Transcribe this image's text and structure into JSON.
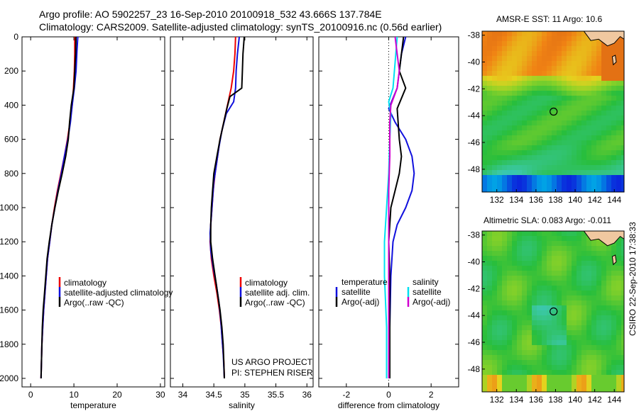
{
  "header": {
    "line1": "Argo profile: AO 5902257_23 16-Sep-2010 20100918_532 43.666S 137.784E",
    "line2": "Climatology: CARS2009. Satellite-adjusted climatology: synTS_20100916.nc (0.56d earlier)"
  },
  "credit": {
    "line1": "US ARGO PROJECT",
    "line2": "PI: STEPHEN RISER"
  },
  "stamp": "CSIRO 22-Sep-2010 17:38:33",
  "colors": {
    "climatology": "#ee0000",
    "satellite": "#1010dd",
    "argo": "#000000",
    "sat_salinity": "#00e0f0",
    "argo_salinity": "#d000d0"
  },
  "chart_data": [
    {
      "type": "line",
      "panel": "temperature",
      "xlabel": "temperature",
      "ylabel": "",
      "xlim": [
        -2,
        31
      ],
      "ylim": [
        2050,
        0
      ],
      "y_reversed": true,
      "xticks": [
        0,
        10,
        20,
        30
      ],
      "yticks": [
        0,
        200,
        400,
        600,
        800,
        1000,
        1200,
        1400,
        1600,
        1800,
        2000
      ],
      "legend": [
        "climatology",
        "satellite-adjusted climatology",
        "Argo(..raw -QC)"
      ],
      "series": [
        {
          "name": "climatology",
          "color": "red",
          "points": [
            [
              10.2,
              0
            ],
            [
              10.2,
              100
            ],
            [
              10.1,
              200
            ],
            [
              9.9,
              300
            ],
            [
              9.6,
              400
            ],
            [
              9.1,
              500
            ],
            [
              8.5,
              600
            ],
            [
              7.8,
              700
            ],
            [
              7.0,
              800
            ],
            [
              6.2,
              900
            ],
            [
              5.5,
              1000
            ],
            [
              4.9,
              1100
            ],
            [
              4.4,
              1200
            ],
            [
              3.9,
              1300
            ],
            [
              3.6,
              1400
            ],
            [
              3.3,
              1500
            ],
            [
              3.0,
              1600
            ],
            [
              2.8,
              1700
            ],
            [
              2.6,
              1800
            ],
            [
              2.5,
              1900
            ],
            [
              2.4,
              2000
            ]
          ]
        },
        {
          "name": "satellite-adjusted climatology",
          "color": "blue",
          "points": [
            [
              10.9,
              0
            ],
            [
              10.7,
              80
            ],
            [
              10.5,
              200
            ],
            [
              10.1,
              300
            ],
            [
              9.6,
              400
            ],
            [
              9.2,
              500
            ],
            [
              8.6,
              600
            ],
            [
              7.8,
              700
            ],
            [
              7.1,
              800
            ],
            [
              6.3,
              900
            ],
            [
              5.6,
              1000
            ],
            [
              4.9,
              1100
            ],
            [
              4.4,
              1200
            ],
            [
              3.9,
              1300
            ],
            [
              3.6,
              1400
            ],
            [
              3.3,
              1500
            ],
            [
              3.0,
              1600
            ],
            [
              2.8,
              1700
            ],
            [
              2.6,
              1800
            ],
            [
              2.5,
              1900
            ],
            [
              2.4,
              2000
            ]
          ]
        },
        {
          "name": "Argo(..raw -QC)",
          "color": "black",
          "points": [
            [
              10.5,
              0
            ],
            [
              10.4,
              100
            ],
            [
              10.2,
              200
            ],
            [
              10.0,
              300
            ],
            [
              9.4,
              400
            ],
            [
              9.0,
              500
            ],
            [
              8.7,
              600
            ],
            [
              8.1,
              700
            ],
            [
              7.3,
              800
            ],
            [
              6.4,
              900
            ],
            [
              5.6,
              1000
            ],
            [
              4.9,
              1100
            ],
            [
              4.3,
              1200
            ],
            [
              3.8,
              1300
            ],
            [
              3.5,
              1400
            ],
            [
              3.2,
              1500
            ],
            [
              2.9,
              1600
            ],
            [
              2.7,
              1700
            ],
            [
              2.6,
              1800
            ],
            [
              2.5,
              1900
            ],
            [
              2.4,
              2000
            ]
          ]
        }
      ]
    },
    {
      "type": "line",
      "panel": "salinity",
      "xlabel": "salinity",
      "ylabel": "",
      "xlim": [
        33.8,
        36.1
      ],
      "ylim": [
        2050,
        0
      ],
      "y_reversed": true,
      "xticks": [
        34,
        34.5,
        35,
        35.5,
        36
      ],
      "legend": [
        "climatology",
        "satellite adj. clim.",
        "Argo(..raw -QC)"
      ],
      "series": [
        {
          "name": "climatology",
          "color": "red",
          "points": [
            [
              34.85,
              0
            ],
            [
              34.84,
              100
            ],
            [
              34.82,
              200
            ],
            [
              34.78,
              300
            ],
            [
              34.72,
              400
            ],
            [
              34.66,
              500
            ],
            [
              34.6,
              600
            ],
            [
              34.56,
              700
            ],
            [
              34.52,
              800
            ],
            [
              34.49,
              900
            ],
            [
              34.47,
              1000
            ],
            [
              34.45,
              1100
            ],
            [
              34.44,
              1200
            ],
            [
              34.46,
              1300
            ],
            [
              34.5,
              1400
            ],
            [
              34.55,
              1500
            ],
            [
              34.59,
              1600
            ],
            [
              34.62,
              1700
            ],
            [
              34.64,
              1800
            ],
            [
              34.66,
              1900
            ],
            [
              34.67,
              2000
            ]
          ]
        },
        {
          "name": "satellite adj. clim.",
          "color": "blue",
          "points": [
            [
              34.91,
              0
            ],
            [
              34.88,
              100
            ],
            [
              34.86,
              200
            ],
            [
              34.85,
              300
            ],
            [
              34.82,
              380
            ],
            [
              34.7,
              450
            ],
            [
              34.63,
              550
            ],
            [
              34.58,
              650
            ],
            [
              34.54,
              750
            ],
            [
              34.5,
              850
            ],
            [
              34.48,
              950
            ],
            [
              34.46,
              1050
            ],
            [
              34.44,
              1150
            ],
            [
              34.45,
              1250
            ],
            [
              34.49,
              1350
            ],
            [
              34.54,
              1450
            ],
            [
              34.58,
              1550
            ],
            [
              34.61,
              1650
            ],
            [
              34.63,
              1750
            ],
            [
              34.65,
              1850
            ],
            [
              34.67,
              2000
            ]
          ]
        },
        {
          "name": "Argo(..raw -QC)",
          "color": "black",
          "points": [
            [
              34.99,
              0
            ],
            [
              34.97,
              100
            ],
            [
              34.96,
              200
            ],
            [
              34.95,
              300
            ],
            [
              34.76,
              350
            ],
            [
              34.71,
              420
            ],
            [
              34.66,
              500
            ],
            [
              34.6,
              600
            ],
            [
              34.55,
              700
            ],
            [
              34.5,
              800
            ],
            [
              34.48,
              900
            ],
            [
              34.46,
              1000
            ],
            [
              34.45,
              1100
            ],
            [
              34.45,
              1200
            ],
            [
              34.48,
              1300
            ],
            [
              34.52,
              1400
            ],
            [
              34.56,
              1500
            ],
            [
              34.6,
              1600
            ],
            [
              34.63,
              1700
            ],
            [
              34.65,
              1800
            ],
            [
              34.66,
              1900
            ],
            [
              34.67,
              2000
            ]
          ]
        }
      ]
    },
    {
      "type": "line",
      "panel": "difference",
      "xlabel": "difference from climatology",
      "ylabel": "",
      "xlim": [
        -3.3,
        3.3
      ],
      "ylim": [
        2050,
        0
      ],
      "y_reversed": true,
      "xticks": [
        -2,
        0,
        2
      ],
      "legend_left_title": "temperature",
      "legend_right_title": "salinity",
      "legend_left": [
        "satellite",
        "Argo(-adj)"
      ],
      "legend_right": [
        "satellite",
        "Argo(-adj)"
      ],
      "series": [
        {
          "name": "temperature satellite",
          "color": "blue",
          "points": [
            [
              0.8,
              0
            ],
            [
              0.6,
              100
            ],
            [
              0.4,
              300
            ],
            [
              0.0,
              420
            ],
            [
              0.3,
              500
            ],
            [
              0.8,
              600
            ],
            [
              1.1,
              700
            ],
            [
              1.2,
              800
            ],
            [
              1.1,
              900
            ],
            [
              0.8,
              1000
            ],
            [
              0.4,
              1100
            ],
            [
              0.2,
              1200
            ],
            [
              0.1,
              1400
            ],
            [
              0.05,
              1700
            ],
            [
              0.0,
              2000
            ]
          ]
        },
        {
          "name": "temperature Argo(-adj)",
          "color": "black",
          "points": [
            [
              0.7,
              0
            ],
            [
              0.6,
              100
            ],
            [
              0.5,
              200
            ],
            [
              0.8,
              300
            ],
            [
              0.4,
              420
            ],
            [
              0.5,
              600
            ],
            [
              0.6,
              700
            ],
            [
              0.5,
              800
            ],
            [
              0.3,
              900
            ],
            [
              0.1,
              1000
            ],
            [
              0.0,
              1200
            ],
            [
              0.05,
              1400
            ],
            [
              0.05,
              1700
            ],
            [
              0.05,
              2000
            ]
          ]
        },
        {
          "name": "salinity satellite",
          "color": "cyan",
          "points": [
            [
              0.4,
              0
            ],
            [
              0.3,
              150
            ],
            [
              0.2,
              300
            ],
            [
              0.0,
              380
            ],
            [
              0.1,
              450
            ],
            [
              0.05,
              600
            ],
            [
              0.0,
              800
            ],
            [
              -0.1,
              1000
            ],
            [
              -0.2,
              1200
            ],
            [
              -0.2,
              1400
            ],
            [
              -0.1,
              1700
            ],
            [
              -0.1,
              2000
            ]
          ]
        },
        {
          "name": "salinity Argo(-adj)",
          "color": "magenta",
          "points": [
            [
              0.3,
              0
            ],
            [
              0.4,
              100
            ],
            [
              0.5,
              200
            ],
            [
              0.4,
              300
            ],
            [
              0.1,
              400
            ],
            [
              0.05,
              500
            ],
            [
              0.05,
              700
            ],
            [
              0.0,
              900
            ],
            [
              0.0,
              1100
            ],
            [
              0.0,
              1400
            ],
            [
              0.0,
              1700
            ],
            [
              0.0,
              2000
            ]
          ]
        }
      ]
    },
    {
      "type": "heatmap",
      "panel": "sst_map",
      "title": "AMSR-E SST: 11 Argo: 10.6",
      "xticks": [
        132,
        134,
        136,
        138,
        140,
        142,
        144
      ],
      "yticks": [
        -38,
        -40,
        -42,
        -44,
        -46,
        -48
      ],
      "xlim": [
        130.5,
        145
      ],
      "ylim": [
        -49.7,
        -37.7
      ],
      "float_position": [
        137.8,
        -43.7
      ],
      "legend": "none"
    },
    {
      "type": "heatmap",
      "panel": "sla_map",
      "title": "Altimetric SLA: 0.083 Argo: -0.011",
      "xticks": [
        132,
        134,
        136,
        138,
        140,
        142,
        144
      ],
      "yticks": [
        -38,
        -40,
        -42,
        -44,
        -46,
        -48
      ],
      "xlim": [
        130.5,
        145
      ],
      "ylim": [
        -49.7,
        -37.7
      ],
      "float_position": [
        137.8,
        -43.7
      ],
      "legend": "none"
    }
  ]
}
